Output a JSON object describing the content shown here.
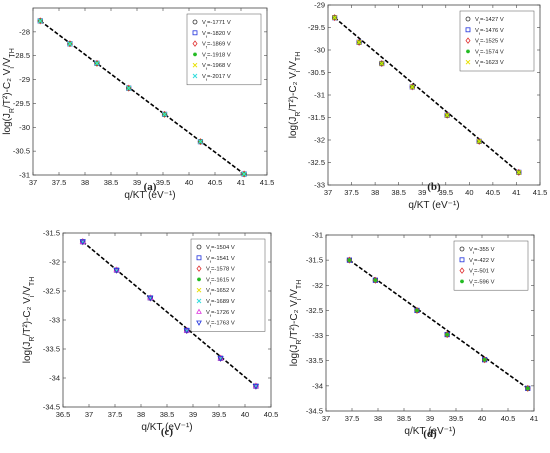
{
  "chart_data": [
    {
      "type": "scatter",
      "caption": "(a)",
      "xlabel": "q/KT (eV⁻¹)",
      "ylabel": "log(J_R/T²)-C₂ V_i/V_TH",
      "xlim": [
        37,
        41.5
      ],
      "ylim": [
        -31,
        -27.5
      ],
      "xticks": [
        "37",
        "37.5",
        "38",
        "38.5",
        "39",
        "39.5",
        "40",
        "40.5",
        "41",
        "41.5"
      ],
      "yticks": [
        "-28",
        "-28.5",
        "-29",
        "-29.5",
        "-30",
        "-30.5",
        "-31"
      ],
      "legend_position": "top-right",
      "series": [
        {
          "name": "V_f=-1771 V",
          "marker": "circle",
          "color": "#333333",
          "x": [
            37.14,
            37.71,
            38.23,
            38.84,
            39.53,
            40.22,
            41.06
          ],
          "y": [
            -27.77,
            -28.25,
            -28.66,
            -29.18,
            -29.73,
            -30.3,
            -30.98
          ]
        },
        {
          "name": "V_f=-1820 V",
          "marker": "square",
          "color": "#2233dd",
          "x": [
            37.14,
            37.71,
            38.23,
            38.84,
            39.53,
            40.22,
            41.06
          ],
          "y": [
            -27.77,
            -28.25,
            -28.66,
            -29.18,
            -29.73,
            -30.3,
            -30.98
          ]
        },
        {
          "name": "V_f=-1869 V",
          "marker": "diamond",
          "color": "#e03030",
          "x": [
            37.14,
            37.71,
            38.23,
            38.84,
            39.53,
            40.22,
            41.06
          ],
          "y": [
            -27.77,
            -28.25,
            -28.66,
            -29.18,
            -29.73,
            -30.3,
            -30.98
          ]
        },
        {
          "name": "V_f=-1918 V",
          "marker": "star",
          "color": "#22bb22",
          "x": [
            37.14,
            37.71,
            38.23,
            38.84,
            39.53,
            40.22,
            41.06
          ],
          "y": [
            -27.77,
            -28.25,
            -28.66,
            -29.18,
            -29.73,
            -30.3,
            -30.98
          ]
        },
        {
          "name": "V_f=-1968 V",
          "marker": "cross",
          "color": "#e8e000",
          "x": [
            37.14,
            37.71,
            38.23,
            38.84,
            39.53,
            40.22,
            41.06
          ],
          "y": [
            -27.77,
            -28.25,
            -28.66,
            -29.18,
            -29.73,
            -30.3,
            -30.98
          ]
        },
        {
          "name": "V_f=-2017 V",
          "marker": "cross",
          "color": "#33dddd",
          "x": [
            37.14,
            37.71,
            38.23,
            38.84,
            39.53,
            40.22,
            41.06
          ],
          "y": [
            -27.77,
            -28.25,
            -28.66,
            -29.18,
            -29.73,
            -30.3,
            -30.98
          ]
        }
      ]
    },
    {
      "type": "scatter",
      "caption": "(b)",
      "xlabel": "q/KT (eV⁻¹)",
      "ylabel": "log(J_R/T²)-C₂ V_i/V_TH",
      "xlim": [
        37,
        41.5
      ],
      "ylim": [
        -33,
        -29
      ],
      "xticks": [
        "37",
        "37.5",
        "38",
        "38.5",
        "39",
        "39.5",
        "40",
        "40.5",
        "41",
        "41.5"
      ],
      "yticks": [
        "-29",
        "-29.5",
        "-30",
        "-30.5",
        "-31",
        "-31.5",
        "-32",
        "-32.5",
        "-33"
      ],
      "legend_position": "top-right",
      "series": [
        {
          "name": "V_f=-1427 V",
          "marker": "circle",
          "color": "#333333",
          "x": [
            37.14,
            37.66,
            38.14,
            38.79,
            39.53,
            40.21,
            41.05
          ],
          "y": [
            -29.28,
            -29.83,
            -30.3,
            -30.82,
            -31.45,
            -32.03,
            -32.72
          ]
        },
        {
          "name": "V_f=-1476 V",
          "marker": "square",
          "color": "#2233dd",
          "x": [
            37.14,
            37.66,
            38.14,
            38.79,
            39.53,
            40.21,
            41.05
          ],
          "y": [
            -29.28,
            -29.83,
            -30.3,
            -30.82,
            -31.45,
            -32.03,
            -32.72
          ]
        },
        {
          "name": "V_f=-1525 V",
          "marker": "diamond",
          "color": "#e03030",
          "x": [
            37.14,
            37.66,
            38.14,
            38.79,
            39.53,
            40.21,
            41.05
          ],
          "y": [
            -29.28,
            -29.83,
            -30.3,
            -30.82,
            -31.45,
            -32.03,
            -32.72
          ]
        },
        {
          "name": "V_f=-1574 V",
          "marker": "star",
          "color": "#22bb22",
          "x": [
            37.14,
            37.66,
            38.14,
            38.79,
            39.53,
            40.21,
            41.05
          ],
          "y": [
            -29.28,
            -29.83,
            -30.3,
            -30.82,
            -31.45,
            -32.03,
            -32.72
          ]
        },
        {
          "name": "V_f=-1623 V",
          "marker": "cross",
          "color": "#e8e000",
          "x": [
            37.14,
            37.66,
            38.14,
            38.79,
            39.53,
            40.21,
            41.05
          ],
          "y": [
            -29.28,
            -29.83,
            -30.3,
            -30.82,
            -31.45,
            -32.03,
            -32.72
          ]
        }
      ]
    },
    {
      "type": "scatter",
      "caption": "(c)",
      "xlabel": "q/KT (eV⁻¹)",
      "ylabel": "log(J_R/T²)-C₂ V_i/V_TH",
      "xlim": [
        36.5,
        40.5
      ],
      "ylim": [
        -34.5,
        -31.5
      ],
      "xticks": [
        "36.5",
        "37",
        "37.5",
        "38",
        "38.5",
        "39",
        "39.5",
        "40",
        "40.5"
      ],
      "yticks": [
        "-31.5",
        "-32",
        "-32.5",
        "-33",
        "-33.5",
        "-34",
        "-34.5"
      ],
      "legend_position": "top-right",
      "series": [
        {
          "name": "V_f=-1504 V",
          "marker": "circle",
          "color": "#333333",
          "x": [
            36.88,
            37.53,
            38.18,
            38.88,
            39.53,
            40.21
          ],
          "y": [
            -31.65,
            -32.14,
            -32.62,
            -33.18,
            -33.66,
            -34.14
          ]
        },
        {
          "name": "V_f=-1541 V",
          "marker": "square",
          "color": "#2233dd",
          "x": [
            36.88,
            37.53,
            38.18,
            38.88,
            39.53,
            40.21
          ],
          "y": [
            -31.65,
            -32.14,
            -32.62,
            -33.18,
            -33.66,
            -34.14
          ]
        },
        {
          "name": "V_f=-1578 V",
          "marker": "diamond",
          "color": "#e03030",
          "x": [
            36.88,
            37.53,
            38.18,
            38.88,
            39.53,
            40.21
          ],
          "y": [
            -31.65,
            -32.14,
            -32.62,
            -33.18,
            -33.66,
            -34.14
          ]
        },
        {
          "name": "V_f=-1615 V",
          "marker": "star",
          "color": "#22bb22",
          "x": [
            36.88,
            37.53,
            38.18,
            38.88,
            39.53,
            40.21
          ],
          "y": [
            -31.65,
            -32.14,
            -32.62,
            -33.18,
            -33.66,
            -34.14
          ]
        },
        {
          "name": "V_f=-1652 V",
          "marker": "cross",
          "color": "#e8e000",
          "x": [
            36.88,
            37.53,
            38.18,
            38.88,
            39.53,
            40.21
          ],
          "y": [
            -31.65,
            -32.14,
            -32.62,
            -33.18,
            -33.66,
            -34.14
          ]
        },
        {
          "name": "V_f=-1689 V",
          "marker": "cross",
          "color": "#33dddd",
          "x": [
            36.88,
            37.53,
            38.18,
            38.88,
            39.53,
            40.21
          ],
          "y": [
            -31.65,
            -32.14,
            -32.62,
            -33.18,
            -33.66,
            -34.14
          ]
        },
        {
          "name": "V_f=-1726 V",
          "marker": "triangle-up",
          "color": "#dd33dd",
          "x": [
            36.88,
            37.53,
            38.18,
            38.88,
            39.53,
            40.21
          ],
          "y": [
            -31.65,
            -32.14,
            -32.62,
            -33.18,
            -33.66,
            -34.14
          ]
        },
        {
          "name": "V_f=-1763 V",
          "marker": "triangle-down",
          "color": "#2233dd",
          "x": [
            36.88,
            37.53,
            38.18,
            38.88,
            39.53,
            40.21
          ],
          "y": [
            -31.65,
            -32.14,
            -32.62,
            -33.18,
            -33.66,
            -34.14
          ]
        }
      ]
    },
    {
      "type": "scatter",
      "caption": "(d)",
      "xlabel": "q/KT (eV⁻¹)",
      "ylabel": "log(J_R/T²)-C₂ V_i/V_TH",
      "xlim": [
        37,
        41
      ],
      "ylim": [
        -34.5,
        -31
      ],
      "xticks": [
        "37",
        "37.5",
        "38",
        "38.5",
        "39",
        "39.5",
        "40",
        "40.5",
        "41"
      ],
      "yticks": [
        "-31",
        "-31.5",
        "-32",
        "-32.5",
        "-33",
        "-33.5",
        "-34",
        "-34.5"
      ],
      "legend_position": "top-right",
      "series": [
        {
          "name": "V_f=-355 V",
          "marker": "circle",
          "color": "#333333",
          "x": [
            37.45,
            37.95,
            38.75,
            39.33,
            40.05,
            40.88
          ],
          "y": [
            -31.5,
            -31.9,
            -32.5,
            -32.98,
            -33.48,
            -34.05
          ]
        },
        {
          "name": "V_f=-422 V",
          "marker": "square",
          "color": "#2233dd",
          "x": [
            37.45,
            37.95,
            38.75,
            39.33,
            40.05,
            40.88
          ],
          "y": [
            -31.5,
            -31.9,
            -32.5,
            -32.98,
            -33.48,
            -34.05
          ]
        },
        {
          "name": "V_f=-501 V",
          "marker": "diamond",
          "color": "#e03030",
          "x": [
            37.45,
            37.95,
            38.75,
            39.33,
            40.05,
            40.88
          ],
          "y": [
            -31.5,
            -31.9,
            -32.5,
            -32.98,
            -33.48,
            -34.05
          ]
        },
        {
          "name": "V_f=-596 V",
          "marker": "star",
          "color": "#22bb22",
          "x": [
            37.45,
            37.95,
            38.75,
            39.33,
            40.05,
            40.88
          ],
          "y": [
            -31.5,
            -31.9,
            -32.5,
            -32.98,
            -33.48,
            -34.05
          ]
        }
      ]
    }
  ]
}
